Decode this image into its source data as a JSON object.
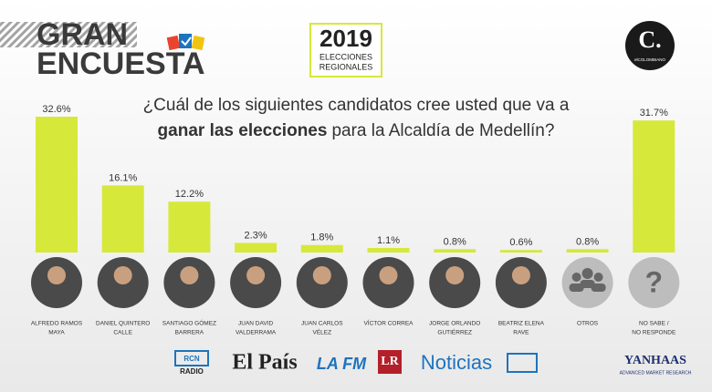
{
  "header": {
    "title_lines": [
      "GRAN",
      "ENCUESTA"
    ],
    "badge_year": "2019",
    "badge_lines": [
      "ELECCIONES",
      "REGIONALES"
    ],
    "logo": "C.",
    "logo_sub": "elCOLOMBIANO"
  },
  "chart_data": {
    "type": "bar",
    "subtitle_lines": [
      "¿Cuál de los siguientes candidatos cree usted que va a",
      "ganar las elecciones",
      "para la Alcaldía de Medellín?"
    ],
    "categories": [
      [
        "ALFREDO RAMOS",
        "MAYA"
      ],
      [
        "DANIEL QUINTERO",
        "CALLE"
      ],
      [
        "SANTIAGO GÓMEZ",
        "BARRERA"
      ],
      [
        "JUAN DAVID",
        "VALDERRAMA"
      ],
      [
        "JUAN CARLOS",
        "VÉLEZ"
      ],
      [
        "VÍCTOR CORREA"
      ],
      [
        "JORGE ORLANDO",
        "GUTIÉRREZ"
      ],
      [
        "BEATRIZ ELENA",
        "RAVE"
      ],
      [
        "OTROS"
      ],
      [
        "NO SABE /",
        "NO RESPONDE"
      ]
    ],
    "values": [
      32.6,
      16.1,
      12.2,
      2.3,
      1.8,
      1.1,
      0.8,
      0.6,
      0.8,
      31.7
    ],
    "value_labels": [
      "32.6%",
      "16.1%",
      "12.2%",
      "2.3%",
      "1.8%",
      "1.1%",
      "0.8%",
      "0.6%",
      "0.8%",
      "31.7%"
    ],
    "color": "#d6e83a",
    "unknown_icon": "?"
  },
  "footer": {
    "sponsors": [
      "RCN",
      "RADIO",
      "El País",
      "LA FM",
      "LR",
      "Noticias",
      "YANHAAS",
      "ADVANCED MARKET RESEARCH"
    ]
  }
}
